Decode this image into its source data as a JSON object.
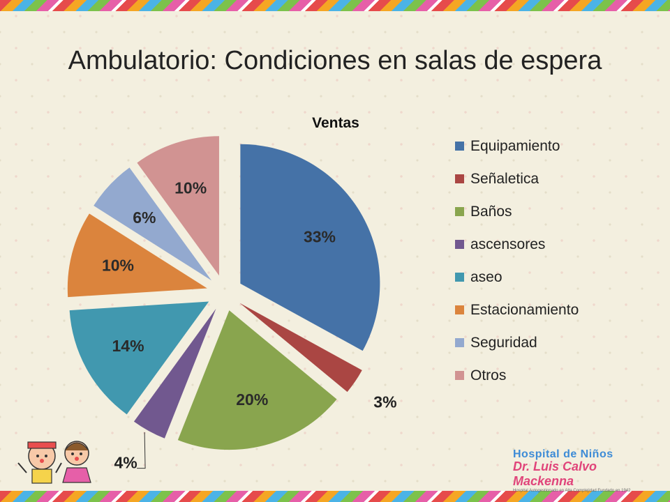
{
  "slide": {
    "title": "Ambulatorio: Condiciones en salas de espera"
  },
  "logo": {
    "line1": "Hospital de Niños",
    "line2": "Dr. Luis Calvo Mackenna",
    "line3": "Hospital Autogestionado en Alta Complejidad Fundado en 1942"
  },
  "chart_data": {
    "type": "pie",
    "title": "Ventas",
    "exploded": true,
    "legend_position": "right",
    "slices": [
      {
        "label": "Equipamiento",
        "value": 33,
        "display": "33%",
        "color": "#4572a7"
      },
      {
        "label": "Señaletica",
        "value": 3,
        "display": "3%",
        "color": "#aa4643"
      },
      {
        "label": "Baños",
        "value": 20,
        "display": "20%",
        "color": "#89a54e"
      },
      {
        "label": "ascensores",
        "value": 4,
        "display": "4%",
        "color": "#71588f"
      },
      {
        "label": "aseo",
        "value": 14,
        "display": "14%",
        "color": "#4198af"
      },
      {
        "label": "Estacionamiento",
        "value": 10,
        "display": "10%",
        "color": "#db843d"
      },
      {
        "label": "Seguridad",
        "value": 6,
        "display": "6%",
        "color": "#93a9cf"
      },
      {
        "label": "Otros",
        "value": 10,
        "display": "10%",
        "color": "#d19392"
      }
    ]
  }
}
